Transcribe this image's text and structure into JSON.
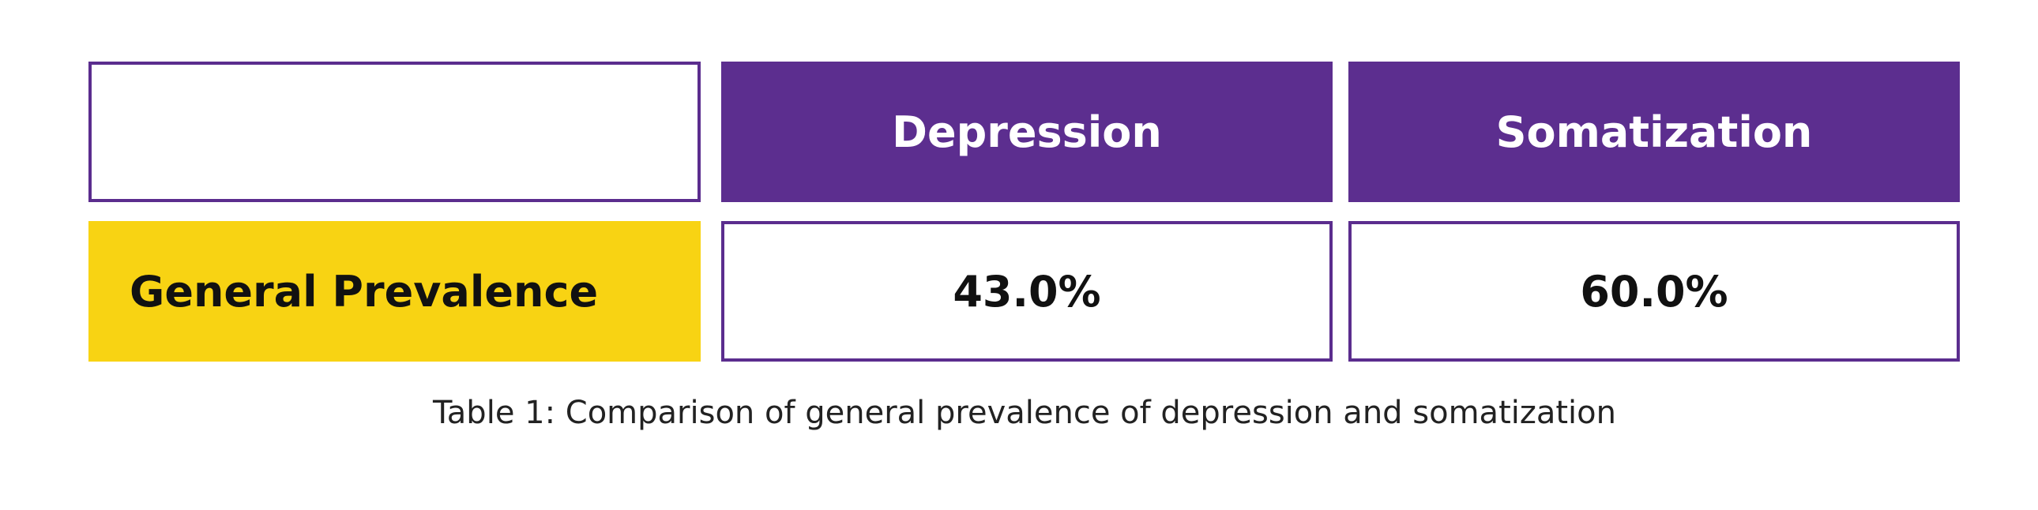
{
  "table": {
    "columns": [
      "Depression",
      "Somatization"
    ],
    "rows": [
      {
        "label": "General Prevalence",
        "values": [
          "43.0%",
          "60.0%"
        ]
      }
    ],
    "caption": "Table 1: Comparison of general prevalence of depression and somatization"
  }
}
